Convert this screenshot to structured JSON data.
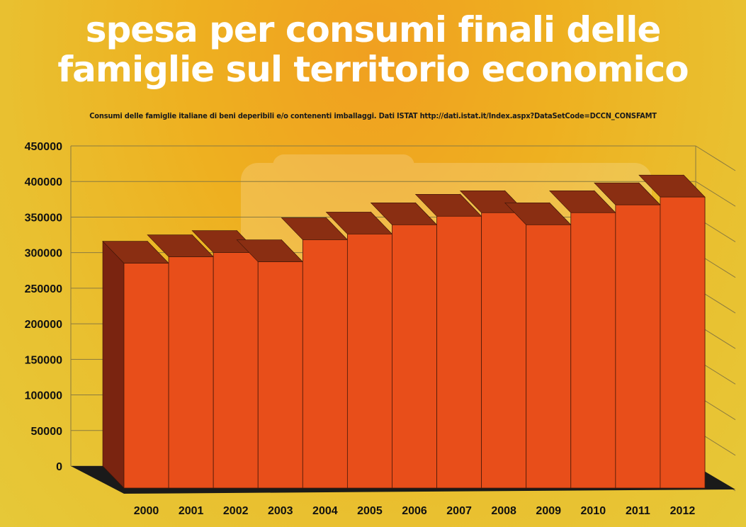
{
  "title_line1": "spesa per consumi finali delle",
  "title_line2": "famiglie sul territorio economico",
  "subtitle": "Consumi delle famiglie italiane di beni deperibili e/o contenenti imballaggi. Dati ISTAT http://dati.istat.it/Index.aspx?DataSetCode=DCCN_CONSFAMT",
  "colors": {
    "bar_front": "#e84e1a",
    "bar_top": "#8a2e12",
    "bar_side": "#7a2410",
    "floor": "#1a1a1a",
    "grid": "#8a7a40"
  },
  "chart_data": {
    "type": "bar",
    "title": "spesa per consumi finali delle famiglie sul territorio economico",
    "subtitle": "Consumi delle famiglie italiane di beni deperibili e/o contenenti imballaggi. Dati ISTAT http://dati.istat.it/Index.aspx?DataSetCode=DCCN_CONSFAMT",
    "categories": [
      "2000",
      "2001",
      "2002",
      "2003",
      "2004",
      "2005",
      "2006",
      "2007",
      "2008",
      "2009",
      "2010",
      "2011",
      "2012"
    ],
    "values": [
      316000,
      325000,
      331000,
      318000,
      349000,
      357000,
      370000,
      382000,
      387000,
      370000,
      387000,
      398000,
      409000
    ],
    "ylim": [
      0,
      450000
    ],
    "yticks": [
      "450000",
      "400000",
      "350000",
      "300000",
      "250000",
      "200000",
      "150000",
      "100000",
      "50000",
      "0"
    ],
    "ytick_values": [
      450000,
      400000,
      350000,
      300000,
      250000,
      200000,
      150000,
      100000,
      50000,
      0
    ],
    "grid": true,
    "style": "3d"
  }
}
